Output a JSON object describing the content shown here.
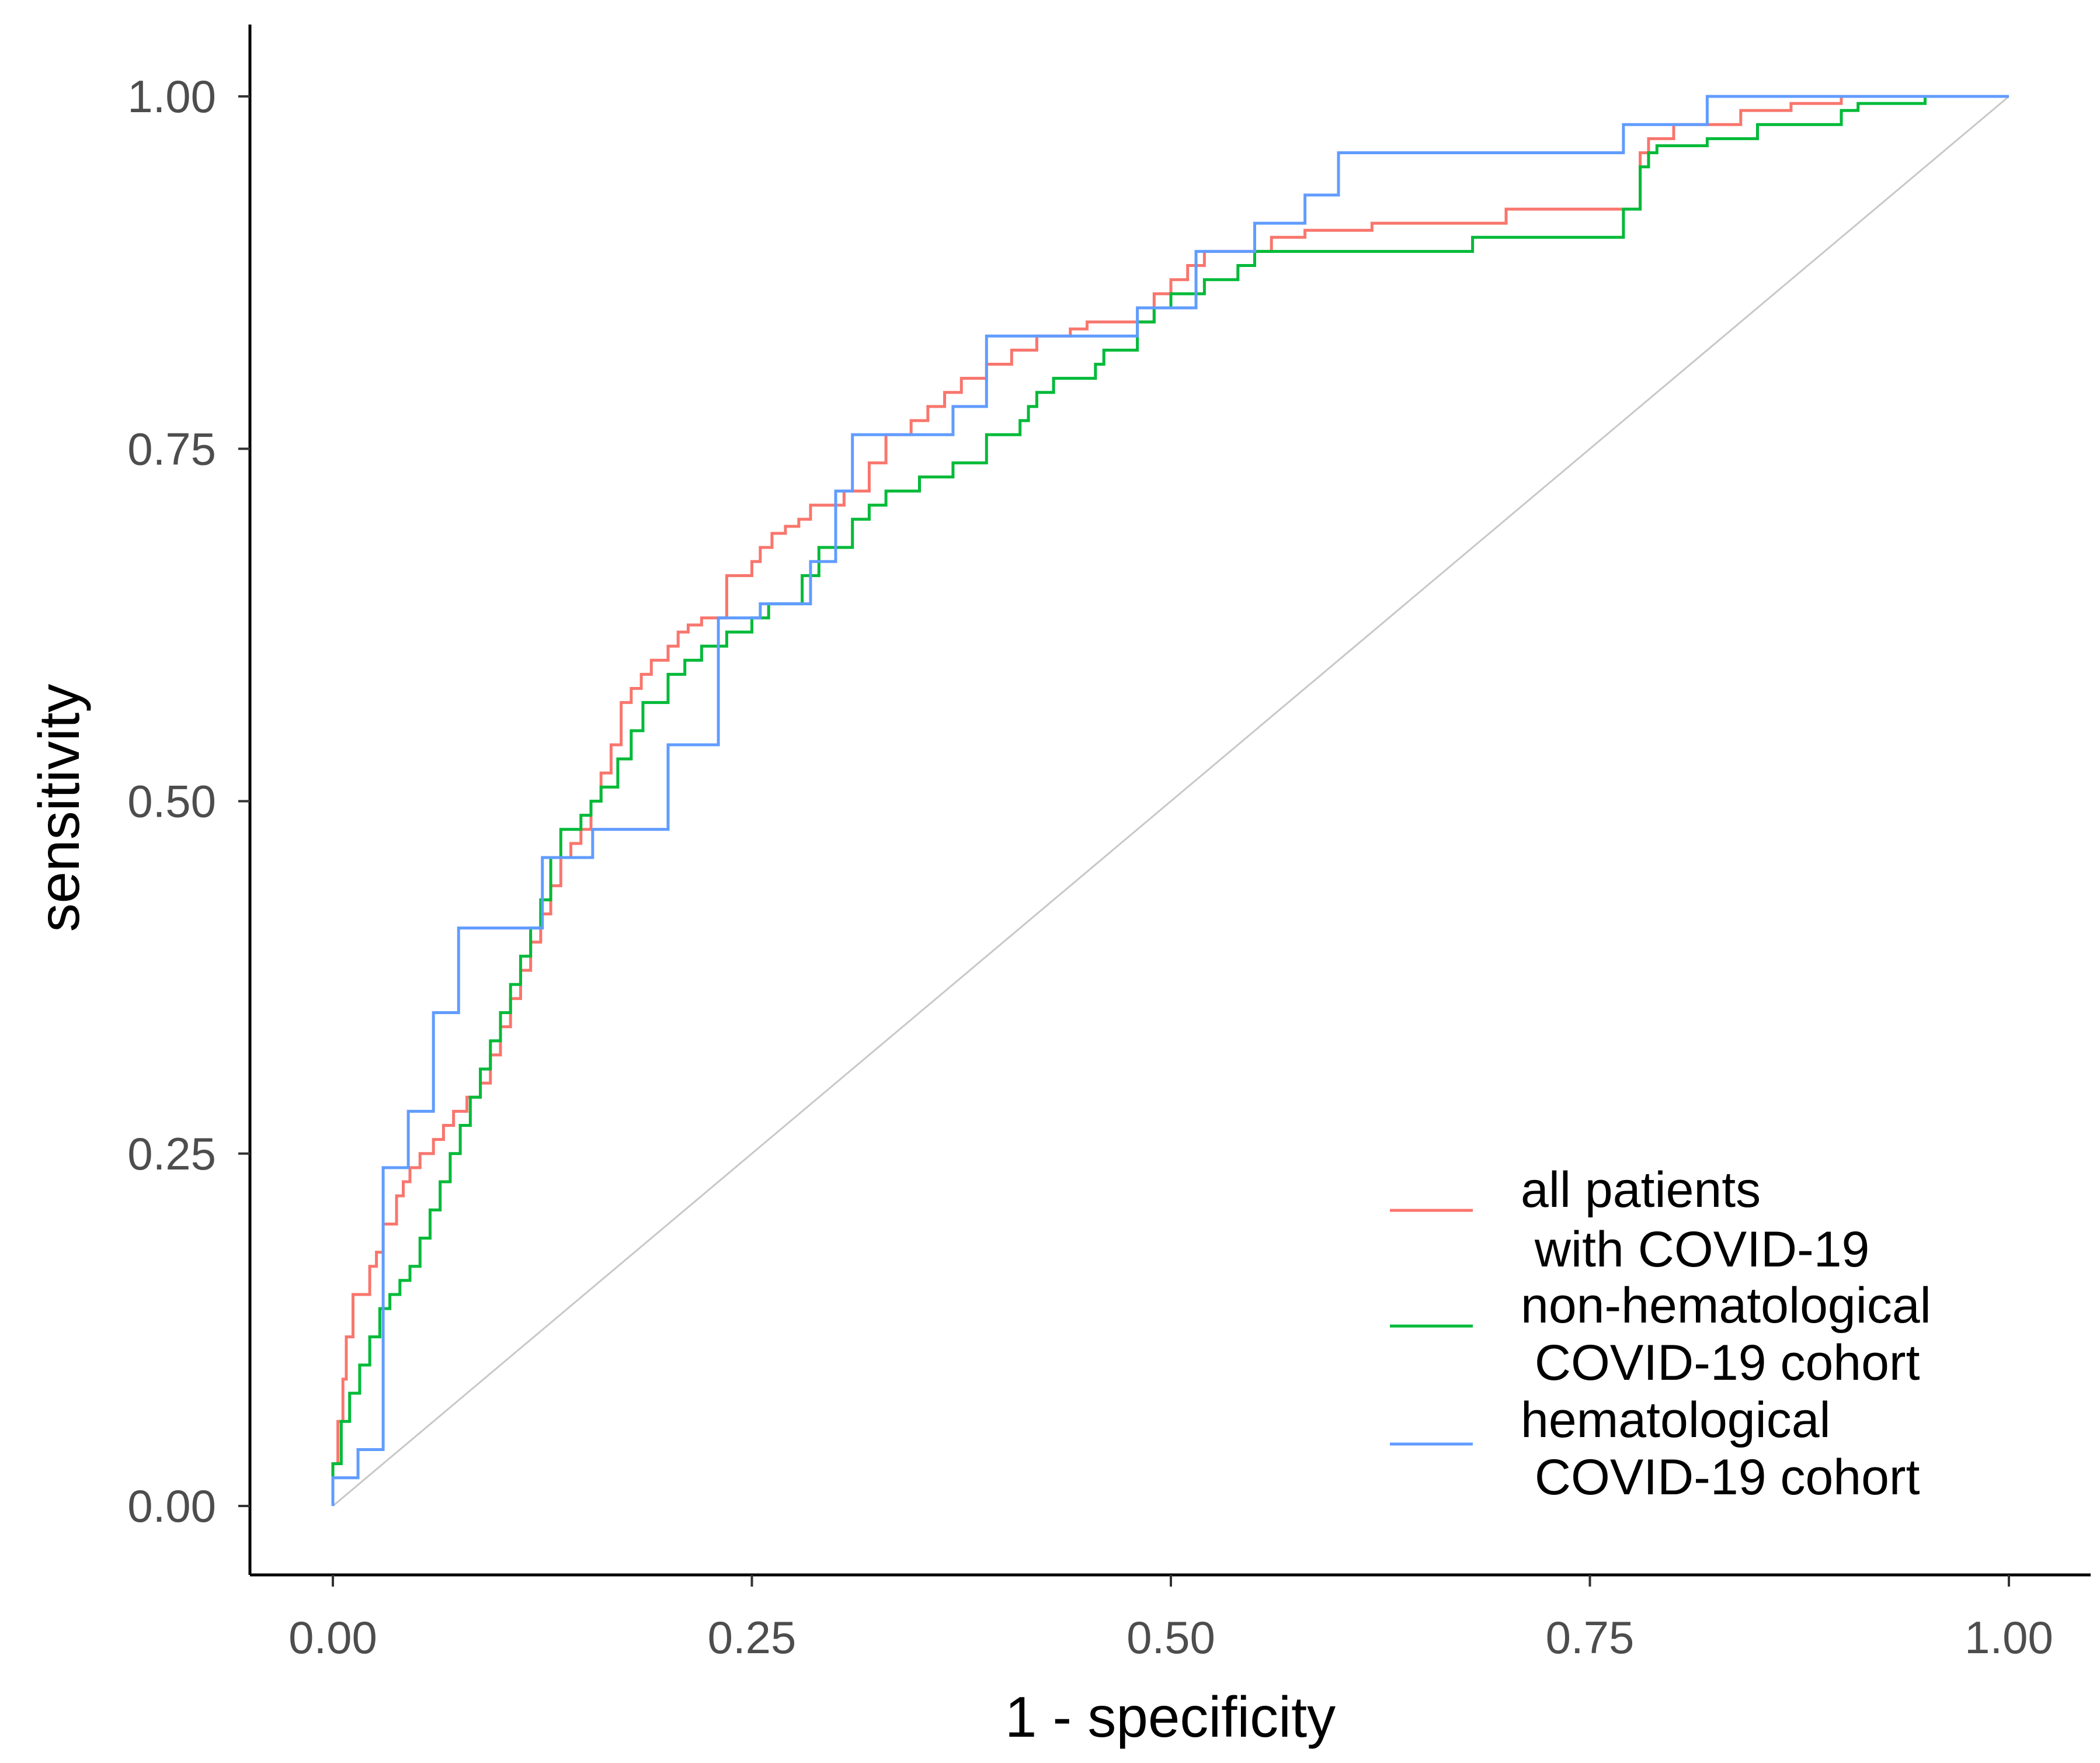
{
  "chart_data": {
    "type": "line",
    "title": "",
    "xlabel": "1 - specificity",
    "ylabel": "sensitivity",
    "xlim": [
      0,
      1
    ],
    "ylim": [
      0,
      1
    ],
    "xticks": [
      "0.00",
      "0.25",
      "0.50",
      "0.75",
      "1.00"
    ],
    "yticks": [
      "0.00",
      "0.25",
      "0.50",
      "0.75",
      "1.00"
    ],
    "grid": false,
    "legend_position": "bottom-right",
    "reference_line": {
      "x": [
        0,
        1
      ],
      "y": [
        0,
        1
      ],
      "color": "#c8c8c8"
    },
    "series": [
      {
        "name": "all patients\n with COVID-19",
        "legend_lines": [
          "all patients",
          " with COVID-19"
        ],
        "color": "#f8766d",
        "x": [
          0,
          0.003,
          0.006,
          0.008,
          0.012,
          0.022,
          0.026,
          0.03,
          0.038,
          0.042,
          0.046,
          0.052,
          0.06,
          0.066,
          0.072,
          0.08,
          0.088,
          0.094,
          0.1,
          0.106,
          0.112,
          0.118,
          0.124,
          0.13,
          0.136,
          0.142,
          0.148,
          0.154,
          0.16,
          0.166,
          0.172,
          0.178,
          0.184,
          0.19,
          0.2,
          0.206,
          0.212,
          0.22,
          0.235,
          0.25,
          0.255,
          0.262,
          0.27,
          0.278,
          0.285,
          0.305,
          0.32,
          0.33,
          0.345,
          0.355,
          0.365,
          0.375,
          0.39,
          0.405,
          0.42,
          0.44,
          0.45,
          0.49,
          0.5,
          0.51,
          0.52,
          0.56,
          0.58,
          0.62,
          0.7,
          0.78,
          0.785,
          0.8,
          0.84,
          0.87,
          0.9,
          0.99,
          1.0
        ],
        "y": [
          0,
          0.03,
          0.06,
          0.09,
          0.12,
          0.15,
          0.17,
          0.18,
          0.2,
          0.22,
          0.23,
          0.24,
          0.25,
          0.26,
          0.27,
          0.28,
          0.29,
          0.3,
          0.32,
          0.34,
          0.36,
          0.38,
          0.4,
          0.42,
          0.44,
          0.46,
          0.47,
          0.48,
          0.5,
          0.52,
          0.54,
          0.57,
          0.58,
          0.59,
          0.6,
          0.61,
          0.62,
          0.625,
          0.63,
          0.66,
          0.67,
          0.68,
          0.69,
          0.695,
          0.7,
          0.71,
          0.72,
          0.74,
          0.76,
          0.77,
          0.78,
          0.79,
          0.8,
          0.81,
          0.82,
          0.83,
          0.835,
          0.84,
          0.86,
          0.87,
          0.88,
          0.89,
          0.9,
          0.905,
          0.91,
          0.92,
          0.96,
          0.97,
          0.98,
          0.99,
          0.995,
          1.0,
          1.0
        ]
      },
      {
        "name": "non-hematological\n COVID-19 cohort",
        "legend_lines": [
          "non-hematological",
          " COVID-19 cohort"
        ],
        "color": "#00ba38",
        "x": [
          0,
          0.005,
          0.01,
          0.016,
          0.022,
          0.028,
          0.034,
          0.04,
          0.046,
          0.052,
          0.058,
          0.064,
          0.07,
          0.076,
          0.082,
          0.088,
          0.094,
          0.1,
          0.106,
          0.112,
          0.118,
          0.124,
          0.13,
          0.136,
          0.148,
          0.154,
          0.16,
          0.17,
          0.178,
          0.185,
          0.2,
          0.21,
          0.22,
          0.235,
          0.25,
          0.26,
          0.28,
          0.29,
          0.31,
          0.32,
          0.33,
          0.35,
          0.37,
          0.38,
          0.39,
          0.41,
          0.415,
          0.42,
          0.43,
          0.455,
          0.46,
          0.48,
          0.49,
          0.5,
          0.52,
          0.54,
          0.55,
          0.57,
          0.6,
          0.68,
          0.7,
          0.75,
          0.77,
          0.78,
          0.785,
          0.79,
          0.82,
          0.85,
          0.88,
          0.9,
          0.91,
          0.95,
          1.0
        ],
        "y": [
          0,
          0.03,
          0.06,
          0.08,
          0.1,
          0.12,
          0.14,
          0.15,
          0.16,
          0.17,
          0.19,
          0.21,
          0.23,
          0.25,
          0.27,
          0.29,
          0.31,
          0.33,
          0.35,
          0.37,
          0.39,
          0.41,
          0.43,
          0.46,
          0.48,
          0.49,
          0.5,
          0.51,
          0.53,
          0.55,
          0.57,
          0.59,
          0.6,
          0.61,
          0.62,
          0.63,
          0.64,
          0.66,
          0.68,
          0.7,
          0.71,
          0.72,
          0.73,
          0.74,
          0.74,
          0.76,
          0.77,
          0.78,
          0.79,
          0.8,
          0.81,
          0.82,
          0.84,
          0.85,
          0.86,
          0.87,
          0.88,
          0.89,
          0.89,
          0.89,
          0.9,
          0.9,
          0.9,
          0.92,
          0.95,
          0.96,
          0.965,
          0.97,
          0.98,
          0.98,
          0.99,
          0.995,
          1.0
        ]
      },
      {
        "name": "hematological\n COVID-19 cohort",
        "legend_lines": [
          "hematological",
          " COVID-19 cohort"
        ],
        "color": "#619cff",
        "x": [
          0,
          0.015,
          0.03,
          0.045,
          0.06,
          0.075,
          0.1,
          0.125,
          0.155,
          0.17,
          0.2,
          0.23,
          0.255,
          0.285,
          0.3,
          0.31,
          0.33,
          0.37,
          0.39,
          0.4,
          0.44,
          0.48,
          0.5,
          0.515,
          0.53,
          0.55,
          0.56,
          0.58,
          0.6,
          0.75,
          0.77,
          0.78,
          0.79,
          0.82,
          0.84,
          0.86,
          0.9,
          1.0
        ],
        "y": [
          0,
          0.02,
          0.04,
          0.24,
          0.28,
          0.35,
          0.41,
          0.41,
          0.46,
          0.48,
          0.48,
          0.54,
          0.63,
          0.64,
          0.67,
          0.72,
          0.76,
          0.76,
          0.78,
          0.83,
          0.83,
          0.83,
          0.85,
          0.85,
          0.89,
          0.89,
          0.91,
          0.91,
          0.93,
          0.96,
          0.96,
          0.98,
          0.98,
          0.98,
          1.0,
          1.0,
          1.0,
          1.0
        ]
      }
    ]
  }
}
